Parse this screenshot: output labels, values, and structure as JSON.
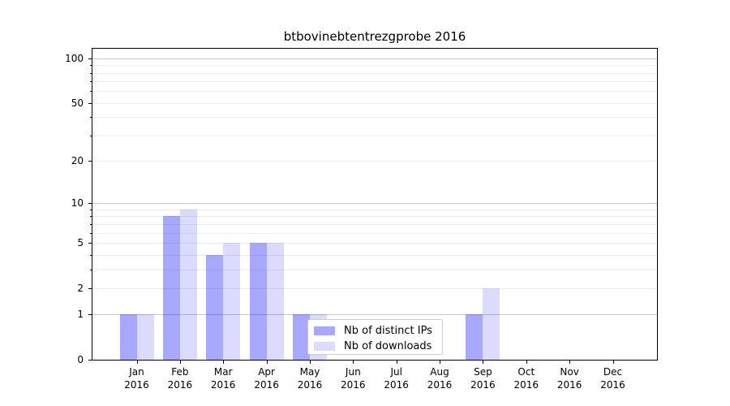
{
  "chart_data": {
    "type": "bar",
    "title": "btbovinebtentrezgprobe 2016",
    "categories": [
      "Jan",
      "Feb",
      "Mar",
      "Apr",
      "May",
      "Jun",
      "Jul",
      "Aug",
      "Sep",
      "Oct",
      "Nov",
      "Dec"
    ],
    "x_tick_year": "2016",
    "series": [
      {
        "name": "Nb of distinct IPs",
        "color": "#0000ff",
        "alpha": 0.34,
        "values": [
          1,
          8,
          4,
          5,
          1,
          0,
          0,
          0,
          1,
          0,
          0,
          0
        ]
      },
      {
        "name": "Nb of downloads",
        "color": "#0000ff",
        "alpha": 0.14,
        "values": [
          1,
          9,
          5,
          5,
          1,
          0,
          0,
          0,
          2,
          0,
          0,
          0
        ]
      }
    ],
    "yscale": "log1p",
    "ylim": [
      0,
      116
    ],
    "y_ticks": [
      0,
      1,
      2,
      5,
      10,
      20,
      50,
      100
    ],
    "grid": {
      "decade_lines": [
        1,
        10,
        100
      ],
      "decade_color": "#c6c6c6",
      "sub_lines": [
        2,
        3,
        4,
        5,
        6,
        7,
        8,
        9,
        20,
        30,
        40,
        50,
        60,
        70,
        80,
        90
      ],
      "sub_color": "#ededed"
    },
    "legend_position": "inside-bottom-center",
    "axis_color": "#000000",
    "background": "#ffffff"
  }
}
